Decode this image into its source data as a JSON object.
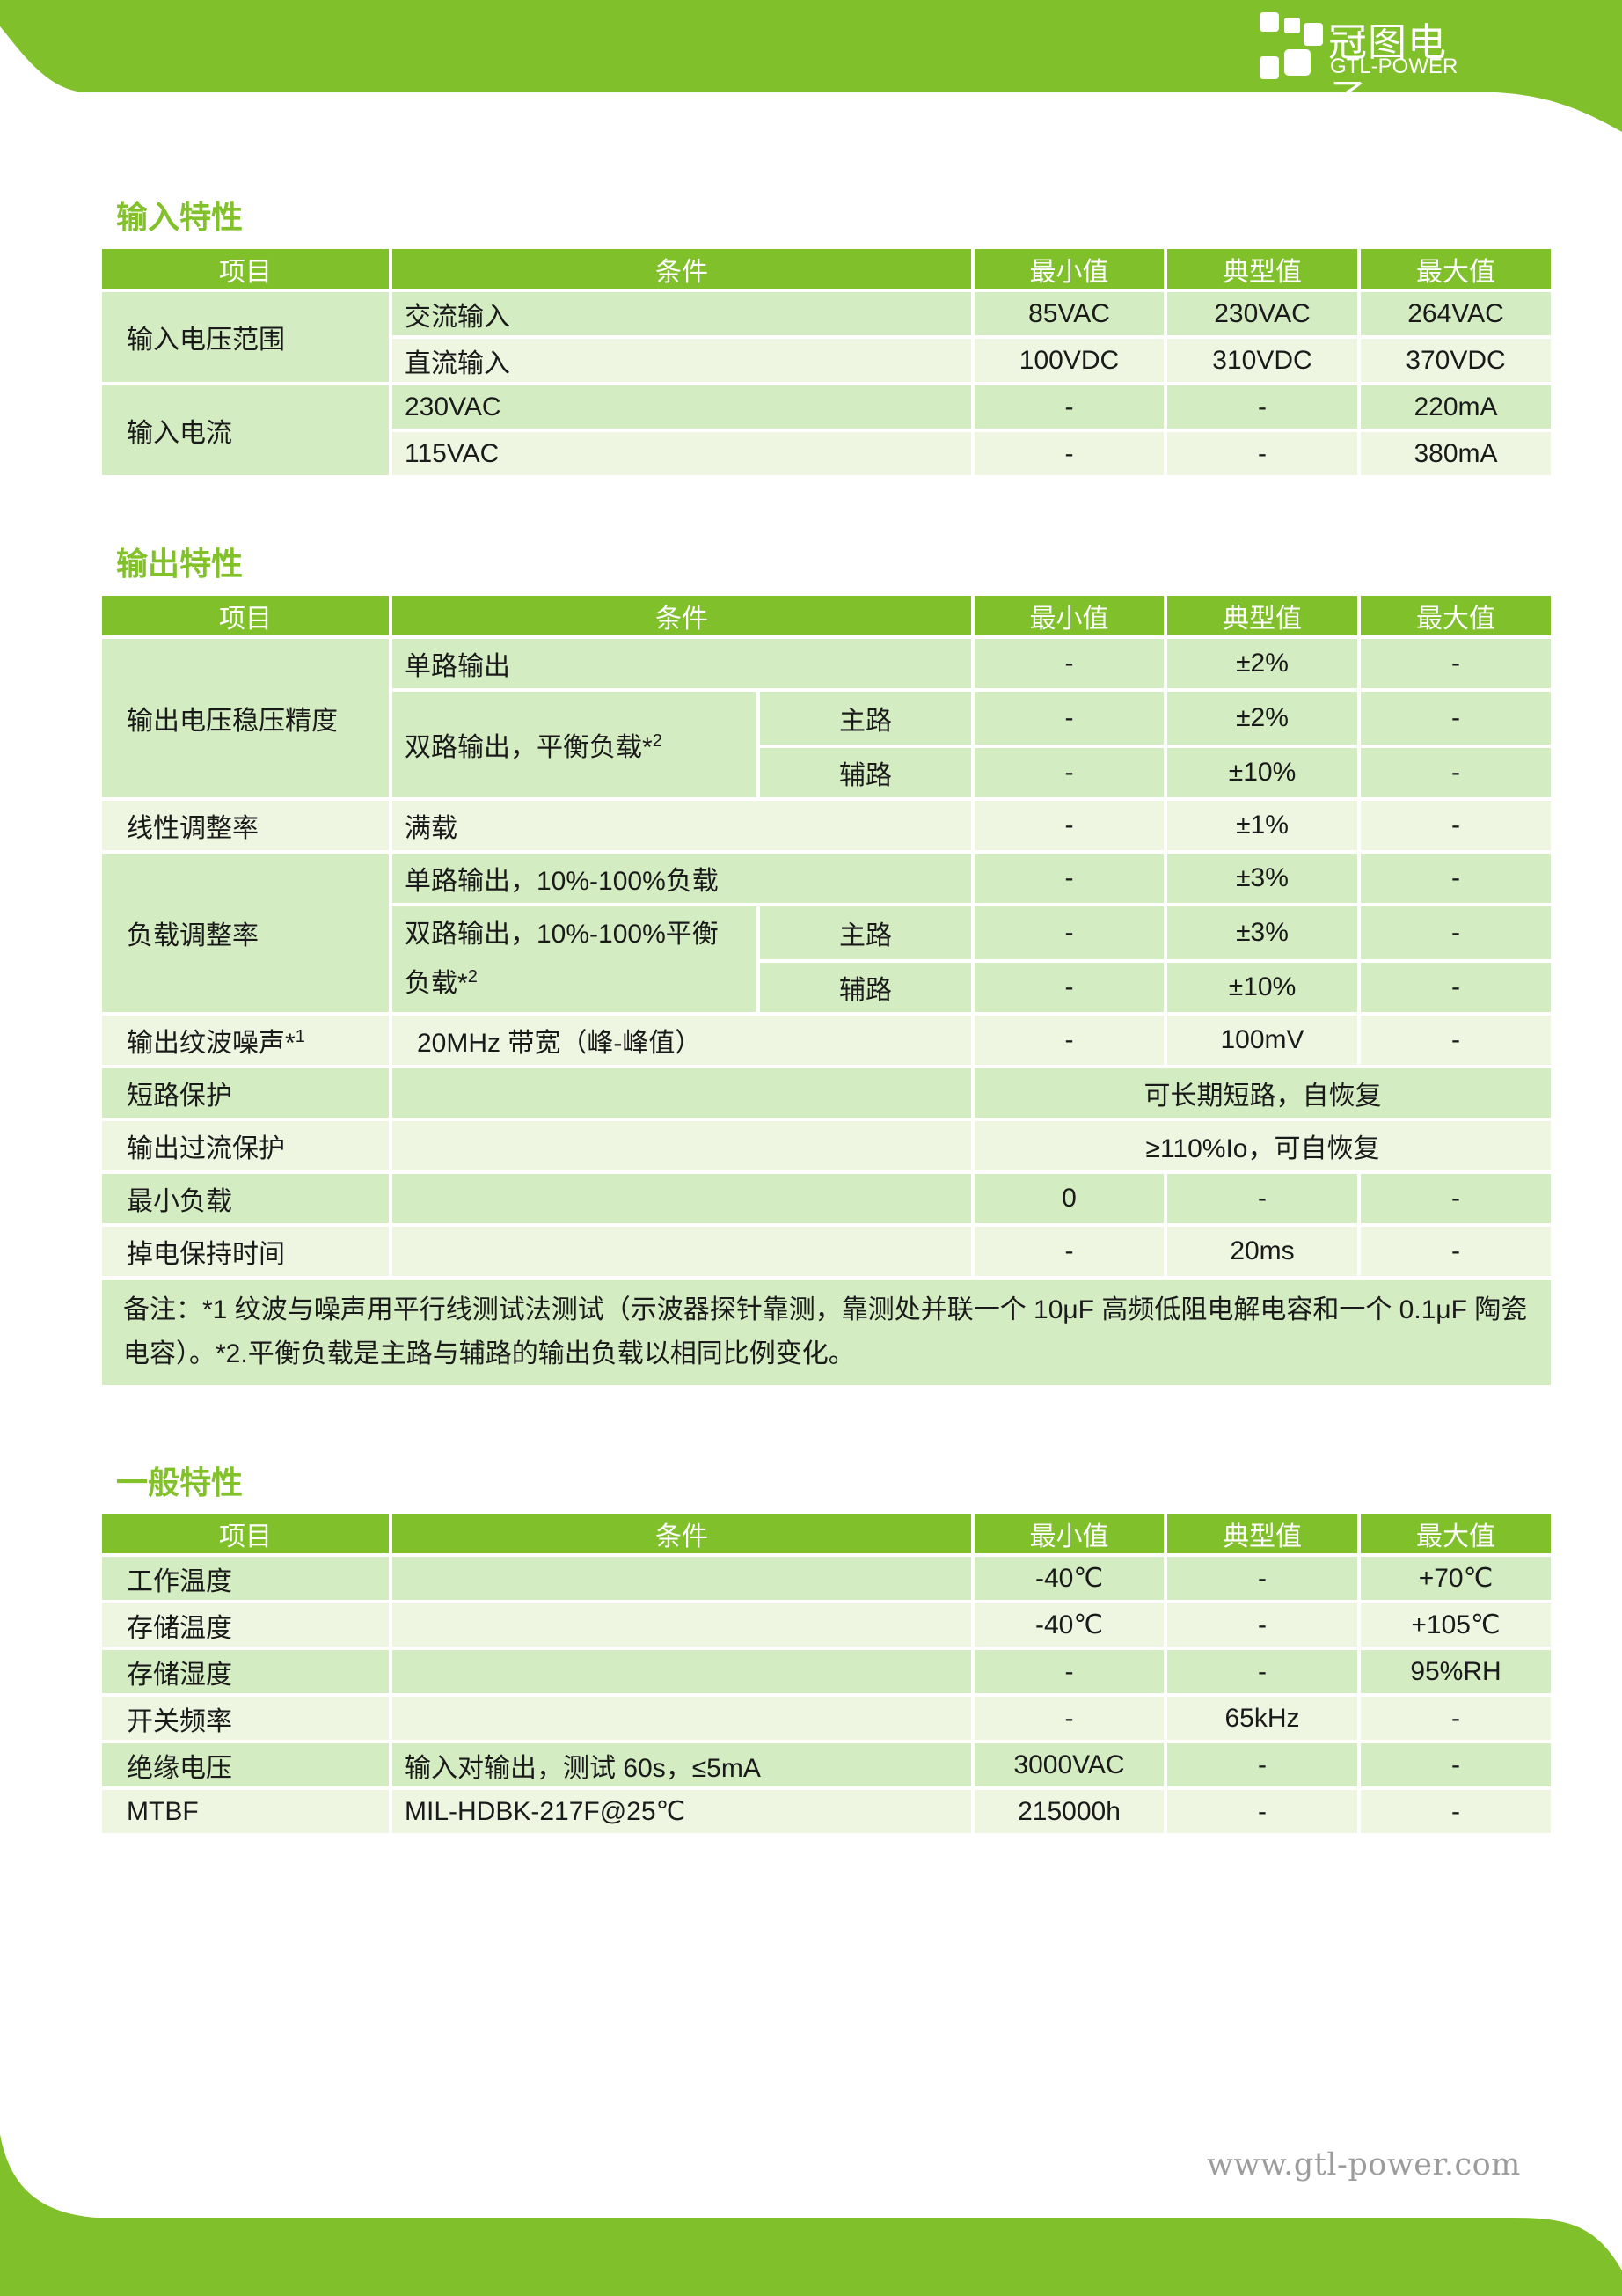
{
  "brand": {
    "name_cn": "冠图电子",
    "name_en": "GTL-POWER",
    "accent_color": "#80c12b",
    "row_dark_color": "#d4ecc2",
    "row_light_color": "#eef6e1"
  },
  "headers": {
    "item": "项目",
    "condition": "条件",
    "min": "最小值",
    "typ": "典型值",
    "max": "最大值"
  },
  "input": {
    "title": "输入特性",
    "rows": [
      {
        "item": "输入电压范围",
        "condition": "交流输入",
        "min": "85VAC",
        "typ": "230VAC",
        "max": "264VAC"
      },
      {
        "condition": "直流输入",
        "min": "100VDC",
        "typ": "310VDC",
        "max": "370VDC"
      },
      {
        "item": "输入电流",
        "condition": "230VAC",
        "min": "-",
        "typ": "-",
        "max": "220mA"
      },
      {
        "condition": "115VAC",
        "min": "-",
        "typ": "-",
        "max": "380mA"
      }
    ]
  },
  "output": {
    "title": "输出特性",
    "regulation": {
      "item": "输出电压稳压精度",
      "single": {
        "condition": "单路输出",
        "min": "-",
        "typ": "±2%",
        "max": "-"
      },
      "dual_condition": "双路输出，平衡负载*",
      "dual_sup": "2",
      "main": {
        "label": "主路",
        "min": "-",
        "typ": "±2%",
        "max": "-"
      },
      "aux": {
        "label": "辅路",
        "min": "-",
        "typ": "±10%",
        "max": "-"
      }
    },
    "line_reg": {
      "item": "线性调整率",
      "condition": "满载",
      "min": "-",
      "typ": "±1%",
      "max": "-"
    },
    "load_reg": {
      "item": "负载调整率",
      "single": {
        "condition": "单路输出，10%-100%负载",
        "min": "-",
        "typ": "±3%",
        "max": "-"
      },
      "dual_condition_1": "双路输出，10%-100%平衡",
      "dual_condition_2": "负载*",
      "dual_sup": "2",
      "main": {
        "label": "主路",
        "min": "-",
        "typ": "±3%",
        "max": "-"
      },
      "aux": {
        "label": "辅路",
        "min": "-",
        "typ": "±10%",
        "max": "-"
      }
    },
    "ripple": {
      "item": "输出纹波噪声*",
      "item_sup": "1",
      "condition": "20MHz 带宽（峰-峰值）",
      "min": "-",
      "typ": "100mV",
      "max": "-"
    },
    "short_circuit": {
      "item": "短路保护",
      "value": "可长期短路，自恢复"
    },
    "over_current": {
      "item": "输出过流保护",
      "value": "≥110%Io，可自恢复"
    },
    "min_load": {
      "item": "最小负载",
      "min": "0",
      "typ": "-",
      "max": "-"
    },
    "hold_up": {
      "item": "掉电保持时间",
      "min": "-",
      "typ": "20ms",
      "max": "-"
    },
    "note": "备注：*1 纹波与噪声用平行线测试法测试（示波器探针靠测，靠测处并联一个 10μF 高频低阻电解电容和一个 0.1μF 陶瓷电容）。*2.平衡负载是主路与辅路的输出负载以相同比例变化。"
  },
  "general": {
    "title": "一般特性",
    "rows": [
      {
        "item": "工作温度",
        "condition": "",
        "min": "-40℃",
        "typ": "-",
        "max": "+70℃"
      },
      {
        "item": "存储温度",
        "condition": "",
        "min": "-40℃",
        "typ": "-",
        "max": "+105℃"
      },
      {
        "item": "存储湿度",
        "condition": "",
        "min": "-",
        "typ": "-",
        "max": "95%RH"
      },
      {
        "item": "开关频率",
        "condition": "",
        "min": "-",
        "typ": "65kHz",
        "max": "-"
      },
      {
        "item": "绝缘电压",
        "condition": "输入对输出，测试 60s，≤5mA",
        "min": "3000VAC",
        "typ": "-",
        "max": "-"
      },
      {
        "item": "MTBF",
        "condition": "MIL-HDBK-217F@25℃",
        "min": "215000h",
        "typ": "-",
        "max": "-"
      }
    ]
  },
  "footer": {
    "url": "www.gtl-power.com"
  }
}
